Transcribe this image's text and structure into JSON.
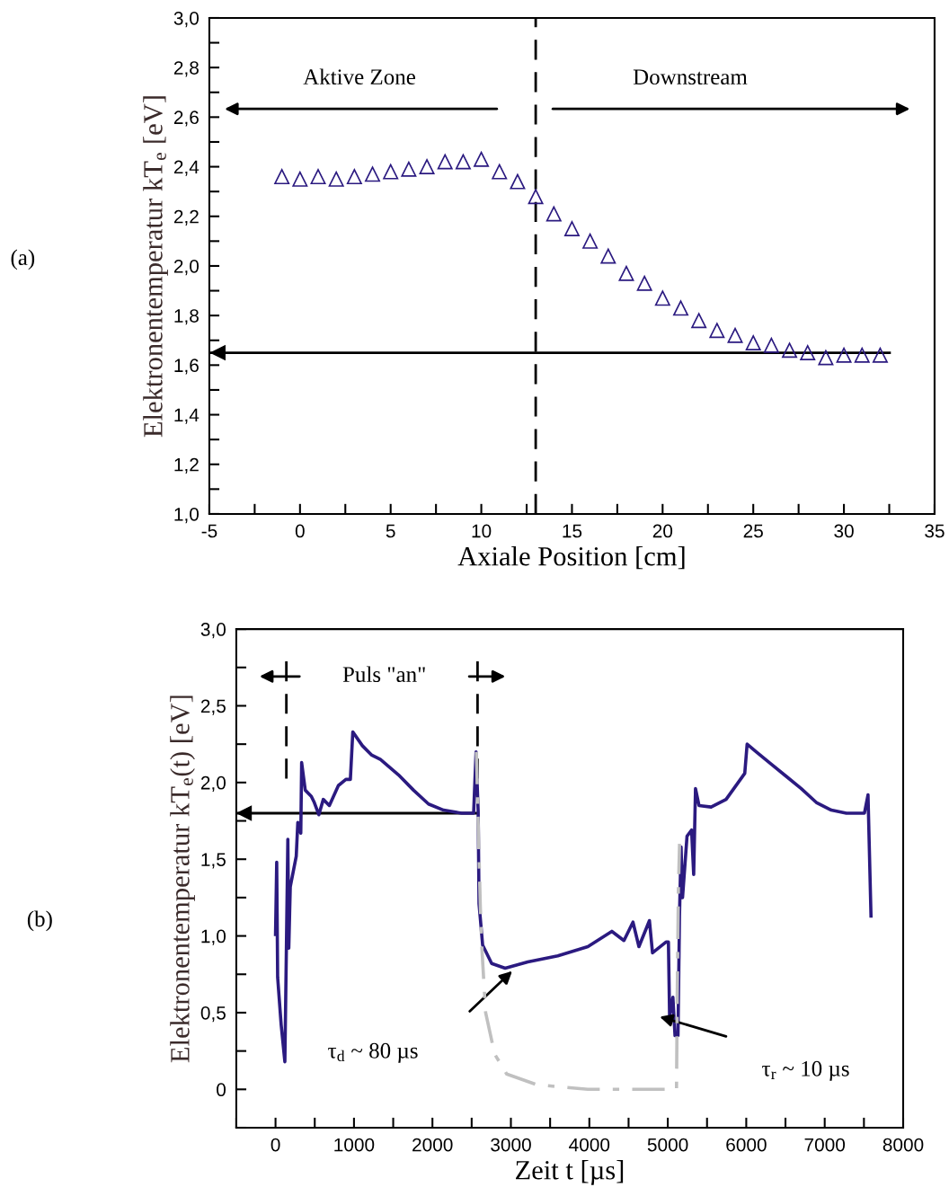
{
  "chart_data": [
    {
      "type": "scatter",
      "xlabel": "Axiale Position [cm]",
      "ylabel": "Elektronentemperatur kT$_{e}$ [eV]",
      "marker": "triangle",
      "x": [
        -1,
        0,
        1,
        2,
        3,
        4,
        5,
        6,
        7,
        8,
        9,
        10,
        11,
        12,
        13,
        14,
        15,
        16,
        17,
        18,
        19,
        20,
        21,
        22,
        23,
        24,
        25,
        26,
        27,
        28,
        29,
        30,
        31,
        32
      ],
      "series": [
        {
          "color": "#2b1a80",
          "values": [
            2.36,
            2.35,
            2.36,
            2.35,
            2.36,
            2.37,
            2.38,
            2.39,
            2.4,
            2.42,
            2.42,
            2.43,
            2.38,
            2.34,
            2.28,
            2.21,
            2.15,
            2.1,
            2.04,
            1.97,
            1.93,
            1.87,
            1.83,
            1.78,
            1.74,
            1.72,
            1.69,
            1.68,
            1.66,
            1.65,
            1.63,
            1.64,
            1.64,
            1.64
          ]
        }
      ],
      "xlim": [
        -5,
        35
      ],
      "xticks": [
        -5,
        {
          "value": -2.5,
          "label": null
        },
        0,
        {
          "value": 2.5,
          "label": null
        },
        5,
        {
          "value": 7.5,
          "label": null
        },
        10,
        {
          "value": 12.5,
          "label": null
        },
        15,
        {
          "value": 17.5,
          "label": null
        },
        20,
        {
          "value": 22.5,
          "label": null
        },
        25,
        {
          "value": 27.5,
          "label": null
        },
        30,
        {
          "value": 32.5,
          "label": null
        },
        35
      ],
      "ylim": [
        1.0,
        3.0
      ],
      "yticks": [
        {
          "value": 1.0,
          "label": "1,0"
        },
        {
          "value": 1.1,
          "label": null
        },
        {
          "value": 1.2,
          "label": "1,2"
        },
        {
          "value": 1.3,
          "label": null
        },
        {
          "value": 1.4,
          "label": "1,4"
        },
        {
          "value": 1.5,
          "label": null
        },
        {
          "value": 1.6,
          "label": "1,6"
        },
        {
          "value": 1.7,
          "label": null
        },
        {
          "value": 1.8,
          "label": "1,8"
        },
        {
          "value": 1.9,
          "label": null
        },
        {
          "value": 2.0,
          "label": "2,0"
        },
        {
          "value": 2.1,
          "label": null
        },
        {
          "value": 2.2,
          "label": "2,2"
        },
        {
          "value": 2.3,
          "label": null
        },
        {
          "value": 2.4,
          "label": "2,4"
        },
        {
          "value": 2.5,
          "label": null
        },
        {
          "value": 2.6,
          "label": "2,6"
        },
        {
          "value": 2.7,
          "label": null
        },
        {
          "value": 2.8,
          "label": "2,8"
        },
        {
          "value": 2.9,
          "label": null
        },
        {
          "value": 3.0,
          "label": "3,0"
        }
      ],
      "ref_lines": [
        {
          "axis": "x",
          "value": 13,
          "line_style": "dashed",
          "color": "#000000"
        },
        {
          "axis": "y",
          "value": 1.65,
          "line_style": "solid",
          "color": "#000000"
        }
      ],
      "annotations": [
        "(a)",
        "Aktive Zone",
        "Downstream"
      ],
      "grid": false
    },
    {
      "type": "line",
      "xlabel": "Zeit t [µs]",
      "ylabel": "Elektronentemperatur kT$_{e}$(t) [eV]",
      "series": [
        {
          "color": "#2b1a80",
          "line_style": "solid",
          "x": [
            0,
            15,
            27,
            72,
            119,
            157,
            169,
            188,
            264,
            284,
            322,
            333,
            379,
            456,
            494,
            552,
            609,
            686,
            801,
            897,
            954,
            985,
            1107,
            1222,
            1337,
            1567,
            1759,
            1950,
            2142,
            2372,
            2525,
            2556,
            2583,
            2594,
            2640,
            2755,
            2927,
            3215,
            3598,
            3981,
            4287,
            4441,
            4556,
            4632,
            4766,
            4805,
            4977,
            5008,
            5023,
            5065,
            5092,
            5130,
            5149,
            5169,
            5188,
            5245,
            5303,
            5330,
            5353,
            5398,
            5552,
            5743,
            5897,
            5981,
            6011,
            6126,
            6318,
            6510,
            6701,
            6893,
            7084,
            7276,
            7506,
            7552,
            7590
          ],
          "values": [
            1.01,
            1.48,
            0.73,
            0.42,
            0.18,
            1.63,
            0.92,
            1.32,
            1.52,
            1.74,
            1.67,
            2.13,
            1.95,
            1.91,
            1.87,
            1.79,
            1.89,
            1.85,
            1.98,
            2.02,
            2.02,
            2.33,
            2.24,
            2.18,
            2.15,
            2.05,
            1.95,
            1.86,
            1.82,
            1.8,
            1.8,
            2.2,
            1.81,
            1.21,
            0.94,
            0.82,
            0.79,
            0.83,
            0.87,
            0.93,
            1.03,
            0.97,
            1.09,
            0.93,
            1.1,
            0.89,
            0.96,
            0.96,
            0.47,
            0.6,
            0.35,
            0.35,
            1.13,
            1.58,
            1.25,
            1.65,
            1.69,
            1.4,
            1.96,
            1.85,
            1.84,
            1.89,
            2.0,
            2.06,
            2.25,
            2.2,
            2.12,
            2.04,
            1.96,
            1.87,
            1.82,
            1.8,
            1.8,
            1.92,
            1.13
          ]
        },
        {
          "color": "#c0c0c0",
          "line_style": "dashdot",
          "x": [
            2560,
            2590,
            2610,
            2627,
            2678,
            2793,
            2946,
            3330,
            3981,
            5111,
            5120,
            5135,
            5150
          ],
          "values": [
            2.2,
            1.6,
            1.2,
            0.95,
            0.5,
            0.23,
            0.1,
            0.03,
            0,
            0,
            0.6,
            1.3,
            1.6
          ]
        }
      ],
      "xlim": [
        -500,
        8000
      ],
      "xticks": [
        {
          "value": -500,
          "label": null
        },
        0,
        {
          "value": 500,
          "label": null
        },
        1000,
        {
          "value": 1500,
          "label": null
        },
        2000,
        {
          "value": 2500,
          "label": null
        },
        3000,
        {
          "value": 3500,
          "label": null
        },
        4000,
        {
          "value": 4500,
          "label": null
        },
        5000,
        {
          "value": 5500,
          "label": null
        },
        6000,
        {
          "value": 6500,
          "label": null
        },
        7000,
        {
          "value": 7500,
          "label": null
        },
        8000
      ],
      "ylim": [
        -0.25,
        3.0
      ],
      "yticks": [
        {
          "value": -0.25,
          "label": null
        },
        0,
        {
          "value": 0.25,
          "label": null
        },
        {
          "value": 0.5,
          "label": "0,5"
        },
        {
          "value": 0.75,
          "label": null
        },
        {
          "value": 1.0,
          "label": "1,0"
        },
        {
          "value": 1.25,
          "label": null
        },
        {
          "value": 1.5,
          "label": "1,5"
        },
        {
          "value": 1.75,
          "label": null
        },
        {
          "value": 2.0,
          "label": "2,0"
        },
        {
          "value": 2.25,
          "label": null
        },
        {
          "value": 2.5,
          "label": "2,5"
        },
        {
          "value": 2.75,
          "label": null
        },
        {
          "value": 3.0,
          "label": "3,0"
        }
      ],
      "ref_lines": [
        {
          "axis": "x",
          "value": 138,
          "line_style": "dashed",
          "color": "#000000"
        },
        {
          "axis": "x",
          "value": 2575,
          "line_style": "dashed",
          "color": "#000000"
        },
        {
          "axis": "y",
          "value": 1.8,
          "line_style": "solid",
          "color": "#000000"
        }
      ],
      "annotations": [
        "(b)",
        "Puls \"an\"",
        "τ$_{d}$ ~ 80 µs",
        "τ$_{r}$ ~ 10 µs"
      ],
      "grid": false
    }
  ]
}
